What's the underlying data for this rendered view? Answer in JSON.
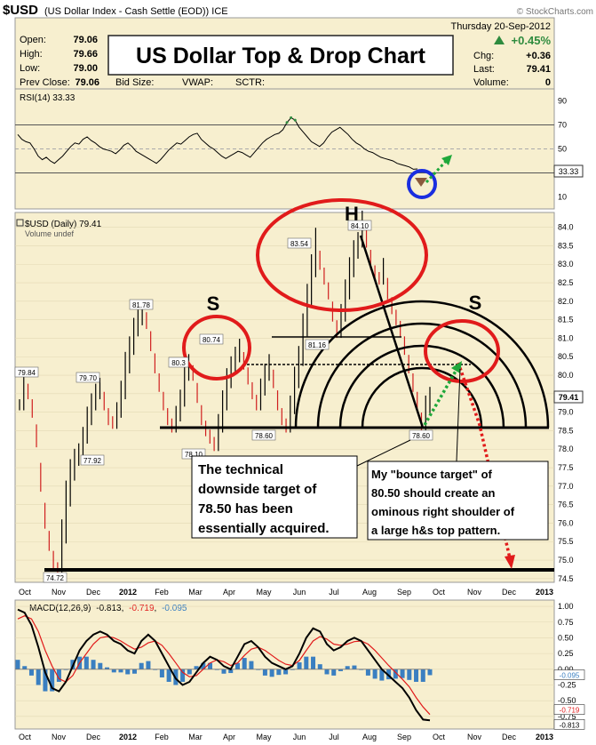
{
  "header": {
    "symbol": "$USD",
    "description": "(US Dollar Index - Cash Settle (EOD)) ICE",
    "watermark": "© StockCharts.com",
    "date": "Thursday 20-Sep-2012",
    "open_label": "Open:",
    "open": "79.06",
    "high_label": "High:",
    "high": "79.66",
    "low_label": "Low:",
    "low": "79.00",
    "prev_label": "Prev Close:",
    "prev": "79.06",
    "bid_label": "Bid Size:",
    "vwap_label": "VWAP:",
    "sctr_label": "SCTR:",
    "change_pct": "+0.45%",
    "chg_label": "Chg:",
    "chg": "+0.36",
    "last_label": "Last:",
    "last": "79.41",
    "volume_label": "Volume:",
    "volume": "0",
    "big_title": "US Dollar Top & Drop Chart"
  },
  "colors": {
    "panel_bg": "#f7efcf",
    "up": "#2e8b3e",
    "red": "#e11b1b",
    "blue": "#1a2ee0",
    "green_arrow": "#1fa83a",
    "macd_hist": "#3a7fc1"
  },
  "chart_data": [
    {
      "type": "line",
      "title": "RSI(14) 33.33",
      "ylabel_ticks": [
        90,
        70,
        50,
        30,
        10
      ],
      "last_value_label": "33.33",
      "series": [
        {
          "name": "RSI(14)",
          "values": [
            62,
            58,
            56,
            55,
            50,
            44,
            41,
            43,
            40,
            38,
            41,
            44,
            48,
            52,
            55,
            54,
            58,
            60,
            57,
            55,
            52,
            50,
            49,
            48,
            46,
            49,
            53,
            55,
            52,
            48,
            46,
            44,
            42,
            40,
            38,
            41,
            45,
            49,
            52,
            55,
            54,
            57,
            60,
            62,
            63,
            58,
            55,
            52,
            50,
            47,
            44,
            42,
            44,
            46,
            48,
            47,
            45,
            43,
            47,
            51,
            55,
            58,
            60,
            62,
            63,
            66,
            72,
            76,
            74,
            68,
            64,
            60,
            56,
            54,
            52,
            55,
            60,
            64,
            66,
            68,
            65,
            62,
            58,
            55,
            53,
            50,
            48,
            47,
            45,
            43,
            42,
            41,
            40,
            38,
            37,
            36,
            35,
            33,
            33.33
          ]
        }
      ]
    },
    {
      "type": "line",
      "title": "$USD (Daily) 79.41",
      "legend_extra": "Volume undef",
      "y_ticks": [
        "84.0",
        "83.5",
        "83.0",
        "82.5",
        "82.0",
        "81.5",
        "81.0",
        "80.5",
        "80.0",
        "79.5",
        "79.0",
        "78.5",
        "78.0",
        "77.5",
        "77.0",
        "76.5",
        "76.0",
        "75.5",
        "75.0",
        "74.5"
      ],
      "ylim": [
        74.4,
        84.4
      ],
      "last_value_label": "79.41",
      "series": [
        {
          "name": "$USD",
          "values": [
            79.2,
            79.8,
            79.5,
            79.0,
            78.2,
            77.0,
            76.0,
            75.4,
            74.9,
            74.72,
            75.6,
            76.6,
            77.3,
            77.7,
            77.92,
            78.3,
            78.8,
            79.2,
            79.5,
            79.7,
            79.2,
            78.8,
            78.7,
            79.0,
            79.5,
            80.2,
            80.7,
            81.2,
            81.5,
            81.78,
            81.4,
            80.8,
            80.2,
            79.7,
            79.2,
            78.8,
            78.6,
            78.9,
            79.3,
            80.0,
            80.3,
            80.0,
            79.4,
            78.8,
            78.5,
            78.3,
            78.1,
            78.6,
            79.2,
            79.8,
            80.2,
            80.5,
            80.74,
            80.3,
            79.9,
            79.5,
            79.2,
            79.6,
            80.0,
            80.3,
            79.8,
            79.2,
            78.8,
            78.6,
            79.1,
            79.8,
            80.4,
            81.2,
            82.0,
            82.8,
            83.54,
            83.0,
            82.6,
            82.2,
            81.6,
            81.16,
            81.6,
            82.2,
            82.8,
            83.3,
            83.6,
            84.1,
            83.6,
            83.0,
            82.7,
            82.6,
            82.9,
            82.2,
            81.8,
            81.5,
            81.2,
            80.7,
            80.2,
            79.7,
            79.2,
            78.6,
            79.1,
            79.41
          ]
        }
      ],
      "annotations": {
        "H": "H",
        "S_left": "S",
        "S_right": "S",
        "pt_84_10": "84.10",
        "pt_83_54": "83.54",
        "pt_81_78": "81.78",
        "pt_81_16": "81.16",
        "pt_80_74": "80.74",
        "pt_80_partial": "80.3",
        "pt_79_84": "79.84",
        "pt_79_70": "79.70",
        "pt_78_60_a": "78.60",
        "pt_78_60_b": "78.60",
        "pt_78_10": "78.10",
        "pt_77_92": "77.92",
        "pt_74_72": "74.72",
        "note_left": [
          "The technical",
          "downside target of",
          "78.50 has been",
          "essentially acquired."
        ],
        "note_right": [
          "My \"bounce target\" of",
          "80.50 should create an",
          "ominous right shoulder  of",
          "a large h&s top pattern."
        ]
      }
    },
    {
      "type": "line",
      "title_prefix": "MACD(12,26,9)",
      "macd": "-0.813",
      "signal": "-0.719",
      "hist": "-0.095",
      "y_ticks": [
        "1.00",
        "0.75",
        "0.50",
        "0.25",
        "0.00",
        "-0.25",
        "-0.50",
        "-0.75"
      ],
      "ylim": [
        -0.95,
        1.1
      ],
      "right_labels": [
        "-0.095",
        "-0.719",
        "-0.813"
      ],
      "series": [
        {
          "name": "MACD",
          "values": [
            0.95,
            0.9,
            0.7,
            0.35,
            -0.05,
            -0.3,
            -0.35,
            -0.2,
            0.05,
            0.3,
            0.45,
            0.55,
            0.6,
            0.55,
            0.45,
            0.4,
            0.3,
            0.25,
            0.45,
            0.55,
            0.45,
            0.25,
            0.05,
            -0.15,
            -0.25,
            -0.2,
            -0.05,
            0.1,
            0.2,
            0.15,
            0.05,
            0.0,
            0.2,
            0.4,
            0.45,
            0.35,
            0.2,
            0.1,
            0.05,
            0.0,
            0.05,
            0.25,
            0.5,
            0.65,
            0.6,
            0.4,
            0.3,
            0.35,
            0.45,
            0.5,
            0.45,
            0.3,
            0.15,
            0.0,
            -0.1,
            -0.2,
            -0.3,
            -0.45,
            -0.65,
            -0.8,
            -0.813
          ]
        },
        {
          "name": "Signal",
          "values": [
            0.8,
            0.85,
            0.8,
            0.6,
            0.3,
            0.05,
            -0.15,
            -0.2,
            -0.1,
            0.1,
            0.25,
            0.4,
            0.5,
            0.52,
            0.5,
            0.45,
            0.38,
            0.32,
            0.35,
            0.42,
            0.45,
            0.38,
            0.25,
            0.1,
            -0.05,
            -0.12,
            -0.1,
            0.0,
            0.1,
            0.15,
            0.12,
            0.06,
            0.1,
            0.22,
            0.32,
            0.35,
            0.3,
            0.22,
            0.14,
            0.08,
            0.06,
            0.14,
            0.3,
            0.45,
            0.52,
            0.48,
            0.4,
            0.38,
            0.4,
            0.44,
            0.45,
            0.4,
            0.3,
            0.18,
            0.06,
            -0.05,
            -0.16,
            -0.28,
            -0.45,
            -0.6,
            -0.719
          ]
        }
      ]
    }
  ],
  "x_axis": {
    "labels": [
      "Oct",
      "Nov",
      "Dec",
      "2012",
      "Feb",
      "Mar",
      "Apr",
      "May",
      "Jun",
      "Jul",
      "Aug",
      "Sep",
      "Oct",
      "Nov",
      "Dec",
      "2013"
    ]
  }
}
